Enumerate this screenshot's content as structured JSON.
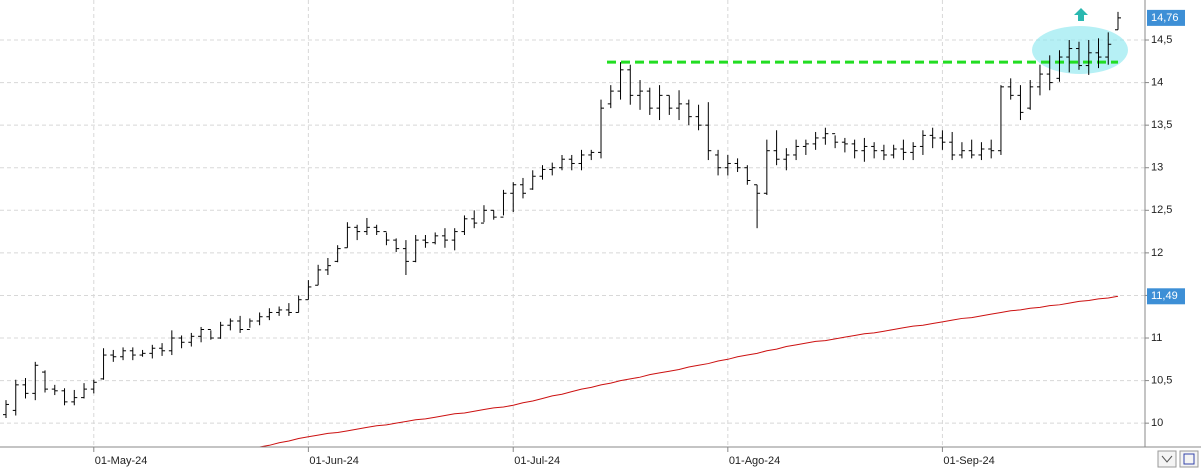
{
  "chart_data": {
    "type": "ohlc",
    "categories": [
      null,
      null,
      null,
      null,
      null,
      null,
      null,
      null,
      null,
      "01-May-24",
      null,
      null,
      null,
      null,
      null,
      null,
      null,
      null,
      null,
      null,
      null,
      null,
      null,
      null,
      null,
      null,
      null,
      null,
      null,
      null,
      null,
      "01-Jun-24",
      null,
      null,
      null,
      null,
      null,
      null,
      null,
      null,
      null,
      null,
      null,
      null,
      null,
      null,
      null,
      null,
      null,
      null,
      null,
      null,
      "01-Jul-24",
      null,
      null,
      null,
      null,
      null,
      null,
      null,
      null,
      null,
      null,
      null,
      null,
      null,
      null,
      null,
      null,
      null,
      null,
      null,
      null,
      null,
      "01-Ago-24",
      null,
      null,
      null,
      null,
      null,
      null,
      null,
      null,
      null,
      null,
      null,
      null,
      null,
      null,
      null,
      null,
      null,
      null,
      null,
      null,
      null,
      "01-Sep-24",
      null,
      null,
      null,
      null,
      null,
      null,
      null,
      null,
      null,
      null,
      null,
      null,
      null,
      null,
      null,
      null,
      null,
      null
    ],
    "open": [
      10.1,
      10.15,
      10.45,
      10.35,
      10.6,
      10.4,
      10.38,
      10.25,
      10.3,
      10.4,
      10.52,
      10.8,
      10.78,
      10.85,
      10.8,
      10.82,
      10.88,
      10.85,
      11.0,
      10.95,
      11.02,
      11.1,
      11.0,
      11.15,
      11.2,
      11.1,
      11.2,
      11.25,
      11.3,
      11.33,
      11.3,
      11.45,
      11.62,
      11.8,
      11.9,
      12.06,
      12.3,
      12.25,
      12.3,
      12.25,
      12.15,
      12.05,
      11.9,
      12.15,
      12.12,
      12.2,
      12.15,
      12.25,
      12.4,
      12.35,
      12.5,
      12.42,
      12.7,
      12.8,
      12.75,
      12.9,
      12.98,
      13.0,
      13.1,
      13.05,
      13.15,
      13.18,
      13.75,
      13.9,
      14.15,
      13.85,
      13.9,
      13.7,
      13.85,
      13.7,
      13.75,
      13.6,
      13.5,
      13.15,
      13.0,
      13.05,
      13.0,
      12.8,
      12.7,
      13.2,
      13.1,
      13.15,
      13.25,
      13.28,
      13.35,
      13.4,
      13.3,
      13.28,
      13.2,
      13.25,
      13.2,
      13.15,
      13.22,
      13.18,
      13.25,
      13.38,
      13.35,
      13.3,
      13.15,
      13.2,
      13.15,
      13.22,
      13.2,
      13.95,
      13.85,
      13.7,
      13.95,
      14.1,
      14.05,
      14.3,
      14.4,
      14.2,
      14.35,
      14.3,
      14.62
    ],
    "high": [
      10.27,
      10.51,
      10.53,
      10.72,
      10.62,
      10.45,
      10.41,
      10.39,
      10.47,
      10.51,
      10.88,
      10.86,
      10.89,
      10.89,
      10.86,
      10.92,
      10.94,
      11.09,
      11.03,
      11.06,
      11.13,
      11.09,
      11.19,
      11.23,
      11.26,
      11.23,
      11.3,
      11.35,
      11.37,
      11.41,
      11.5,
      11.68,
      11.86,
      11.94,
      12.09,
      12.36,
      12.33,
      12.41,
      12.33,
      12.24,
      12.17,
      12.15,
      12.21,
      12.21,
      12.24,
      12.29,
      12.29,
      12.44,
      12.5,
      12.56,
      12.5,
      12.74,
      12.83,
      12.88,
      12.97,
      13.03,
      13.06,
      13.15,
      13.15,
      13.21,
      13.21,
      13.8,
      13.97,
      14.24,
      14.21,
      14.03,
      13.94,
      13.97,
      13.85,
      13.91,
      13.8,
      13.74,
      13.77,
      13.21,
      13.15,
      13.11,
      13.03,
      12.8,
      13.33,
      13.44,
      13.23,
      13.33,
      13.33,
      13.42,
      13.47,
      13.38,
      13.35,
      13.33,
      13.35,
      13.3,
      13.27,
      13.27,
      13.33,
      13.3,
      13.44,
      13.47,
      13.44,
      13.42,
      13.3,
      13.33,
      13.3,
      13.33,
      13.97,
      14.05,
      13.97,
      14.03,
      14.21,
      14.32,
      14.38,
      14.5,
      14.48,
      14.5,
      14.52,
      14.59,
      14.83
    ],
    "low": [
      10.06,
      10.09,
      10.29,
      10.27,
      10.36,
      10.33,
      10.21,
      10.21,
      10.29,
      10.35,
      10.51,
      10.72,
      10.74,
      10.74,
      10.78,
      10.76,
      10.79,
      10.8,
      10.88,
      10.9,
      10.95,
      10.98,
      10.99,
      11.09,
      11.06,
      11.12,
      11.15,
      11.21,
      11.26,
      11.26,
      11.3,
      11.45,
      11.62,
      11.74,
      11.89,
      12.06,
      12.15,
      12.21,
      12.21,
      12.09,
      12.01,
      11.74,
      11.89,
      12.06,
      12.1,
      12.06,
      12.03,
      12.21,
      12.29,
      12.36,
      12.39,
      12.44,
      12.48,
      12.64,
      12.74,
      12.86,
      12.91,
      12.97,
      12.97,
      12.97,
      13.09,
      13.11,
      13.7,
      13.8,
      13.74,
      13.68,
      13.62,
      13.56,
      13.62,
      13.56,
      13.5,
      13.44,
      13.09,
      12.91,
      12.91,
      12.95,
      12.8,
      12.29,
      12.68,
      13.03,
      12.97,
      13.09,
      13.15,
      13.21,
      13.27,
      13.23,
      13.18,
      13.11,
      13.07,
      13.11,
      13.09,
      13.11,
      13.09,
      13.09,
      13.15,
      13.23,
      13.21,
      13.09,
      13.11,
      13.11,
      13.09,
      13.11,
      13.15,
      13.8,
      13.56,
      13.68,
      13.85,
      13.91,
      14.01,
      14.12,
      14.15,
      14.09,
      14.17,
      14.21,
      14.62
    ],
    "close": [
      10.22,
      10.45,
      10.35,
      10.68,
      10.4,
      10.38,
      10.25,
      10.3,
      10.4,
      10.48,
      10.8,
      10.78,
      10.85,
      10.8,
      10.82,
      10.88,
      10.85,
      11.0,
      10.95,
      11.02,
      11.1,
      11.0,
      11.15,
      11.2,
      11.1,
      11.2,
      11.25,
      11.3,
      11.33,
      11.3,
      11.45,
      11.6,
      11.8,
      11.85,
      12.05,
      12.3,
      12.25,
      12.3,
      12.25,
      12.15,
      12.05,
      11.9,
      12.15,
      12.12,
      12.2,
      12.15,
      12.25,
      12.4,
      12.35,
      12.5,
      12.42,
      12.7,
      12.8,
      12.7,
      12.9,
      12.98,
      13.0,
      13.1,
      13.05,
      13.15,
      13.18,
      13.7,
      13.9,
      14.15,
      13.85,
      13.9,
      13.7,
      13.85,
      13.7,
      13.75,
      13.6,
      13.5,
      13.2,
      13.0,
      13.05,
      13.0,
      12.85,
      12.7,
      13.2,
      13.1,
      13.15,
      13.25,
      13.28,
      13.35,
      13.4,
      13.3,
      13.28,
      13.2,
      13.25,
      13.2,
      13.15,
      13.22,
      13.18,
      13.25,
      13.38,
      13.35,
      13.3,
      13.15,
      13.2,
      13.15,
      13.22,
      13.2,
      13.95,
      13.85,
      13.65,
      13.95,
      14.1,
      14.0,
      14.3,
      14.4,
      14.2,
      14.35,
      14.3,
      14.45,
      14.76
    ],
    "color": "#000000",
    "moving_average": {
      "color": "#cc1111",
      "values": [
        null,
        null,
        null,
        null,
        null,
        null,
        null,
        null,
        null,
        null,
        null,
        null,
        null,
        null,
        null,
        null,
        null,
        null,
        null,
        null,
        null,
        null,
        null,
        null,
        null,
        null,
        9.72,
        9.74,
        9.77,
        9.79,
        9.82,
        9.84,
        9.86,
        9.88,
        9.89,
        9.91,
        9.93,
        9.95,
        9.97,
        9.98,
        10.0,
        10.02,
        10.04,
        10.05,
        10.07,
        10.09,
        10.11,
        10.12,
        10.14,
        10.16,
        10.18,
        10.19,
        10.21,
        10.24,
        10.26,
        10.29,
        10.32,
        10.34,
        10.37,
        10.4,
        10.42,
        10.45,
        10.47,
        10.5,
        10.52,
        10.54,
        10.57,
        10.59,
        10.61,
        10.63,
        10.66,
        10.68,
        10.7,
        10.73,
        10.75,
        10.78,
        10.8,
        10.82,
        10.85,
        10.87,
        10.9,
        10.92,
        10.94,
        10.96,
        10.97,
        10.99,
        11.01,
        11.03,
        11.05,
        11.06,
        11.08,
        11.1,
        11.12,
        11.14,
        11.15,
        11.17,
        11.19,
        11.21,
        11.23,
        11.24,
        11.26,
        11.28,
        11.3,
        11.32,
        11.33,
        11.35,
        11.36,
        11.38,
        11.39,
        11.41,
        11.43,
        11.44,
        11.46,
        11.47,
        11.49
      ]
    },
    "resistance": {
      "value": 14.24,
      "color": "#22dd22"
    },
    "price_labels": [
      {
        "value": 14.76,
        "label": "14,76"
      },
      {
        "value": 11.49,
        "label": "11,49"
      }
    ],
    "ylim": [
      9.72,
      14.97
    ],
    "yticks": [
      10,
      {
        "value": 10.5,
        "label": "10,5"
      },
      11,
      {
        "value": 11.5,
        "label": "11,5"
      },
      12,
      {
        "value": 12.5,
        "label": "12,5"
      },
      13,
      {
        "value": 13.5,
        "label": "13,5"
      },
      14,
      {
        "value": 14.5,
        "label": "14,5"
      }
    ],
    "grid": true
  }
}
